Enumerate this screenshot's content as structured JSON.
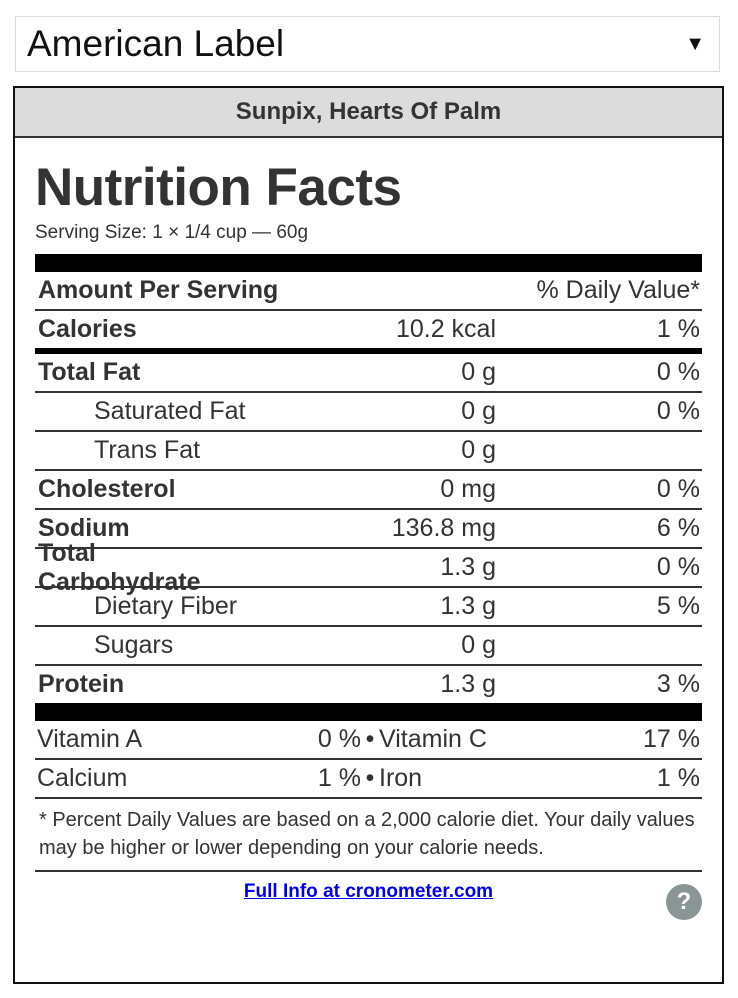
{
  "selector": {
    "selected": "American Label",
    "caret": "▼"
  },
  "food_name": "Sunpix, Hearts Of Palm",
  "title": "Nutrition Facts",
  "serving_size": "Serving Size: 1 × 1/4 cup — 60g",
  "header_row": {
    "left": "Amount Per Serving",
    "right": "% Daily Value*"
  },
  "calories": {
    "name": "Calories",
    "amount": "10.2 kcal",
    "dv": "1 %"
  },
  "nutrients": [
    {
      "name": "Total Fat",
      "amount": "0 g",
      "dv": "0 %"
    },
    {
      "name": "Saturated Fat",
      "amount": "0 g",
      "dv": "0 %"
    },
    {
      "name": "Trans Fat",
      "amount": "0 g",
      "dv": ""
    },
    {
      "name": "Cholesterol",
      "amount": "0 mg",
      "dv": "0 %"
    },
    {
      "name": "Sodium",
      "amount": "136.8 mg",
      "dv": "6 %"
    },
    {
      "name": "Total Carbohydrate",
      "amount": "1.3 g",
      "dv": "0 %"
    },
    {
      "name": "Dietary Fiber",
      "amount": "1.3 g",
      "dv": "5 %"
    },
    {
      "name": "Sugars",
      "amount": "0 g",
      "dv": ""
    },
    {
      "name": "Protein",
      "amount": "1.3 g",
      "dv": "3 %"
    }
  ],
  "vitamins": [
    {
      "left_name": "Vitamin A",
      "left_pct": "0 %",
      "separator": "•",
      "right_name": "Vitamin C",
      "right_pct": "17 %"
    },
    {
      "left_name": "Calcium",
      "left_pct": "1 %",
      "separator": "•",
      "right_name": "Iron",
      "right_pct": "1 %"
    }
  ],
  "footnote": "* Percent Daily Values are based on a 2,000 calorie diet. Your daily values may be higher or lower depending on your calorie needs.",
  "footer": {
    "link_text": "Full Info at cronometer.com",
    "help_glyph": "?"
  },
  "colors": {
    "header_bg": "#dcdcdc",
    "text": "#333333",
    "link": "#0000ee",
    "help_icon": "#8a9596"
  }
}
